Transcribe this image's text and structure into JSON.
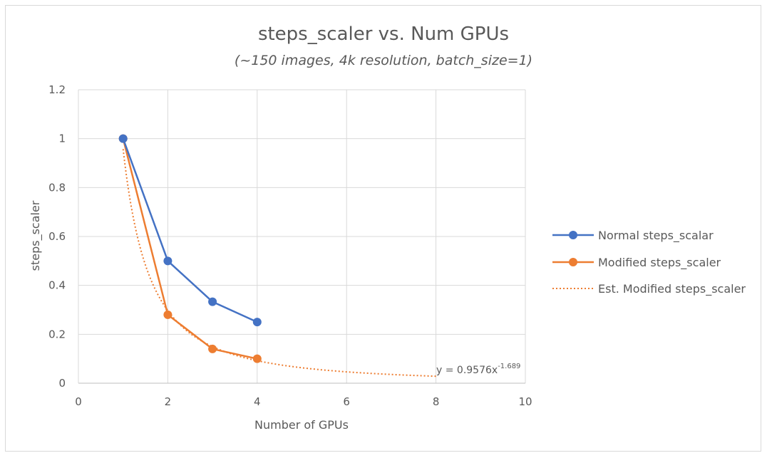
{
  "chart_data": {
    "type": "scatter",
    "title": "steps_scaler vs. Num GPUs",
    "subtitle": "(~150 images, 4k resolution, batch_size=1)",
    "xlabel": "Number of GPUs",
    "ylabel": "steps_scaler",
    "xlim": [
      0,
      10
    ],
    "ylim": [
      0,
      1.2
    ],
    "xticks": [
      0,
      2,
      4,
      6,
      8,
      10
    ],
    "yticks": [
      0,
      0.2,
      0.4,
      0.6,
      0.8,
      1,
      1.2
    ],
    "xtick_labels": [
      "0",
      "2",
      "4",
      "6",
      "8",
      "10"
    ],
    "ytick_labels": [
      "0",
      "0.2",
      "0.4",
      "0.6",
      "0.8",
      "1",
      "1.2"
    ],
    "grid": true,
    "legend_position": "right",
    "series": [
      {
        "name": "Normal steps_scalar",
        "color": "#4472c4",
        "style": "line-markers",
        "x": [
          1,
          2,
          3,
          4
        ],
        "y": [
          1,
          0.5,
          0.333,
          0.25
        ]
      },
      {
        "name": "Modified steps_scaler",
        "color": "#ed7d31",
        "style": "line-markers",
        "x": [
          1,
          2,
          3,
          4
        ],
        "y": [
          1,
          0.28,
          0.14,
          0.1
        ]
      },
      {
        "name": "Est. Modified steps_scaler",
        "color": "#ed7d31",
        "style": "dotted-trendline",
        "trendline": {
          "type": "power",
          "a": 0.9576,
          "b": -1.689,
          "x_range": [
            1,
            8
          ]
        }
      }
    ],
    "annotation": {
      "equation_base": "y = 0.9576x",
      "equation_exponent": "-1.689"
    }
  }
}
